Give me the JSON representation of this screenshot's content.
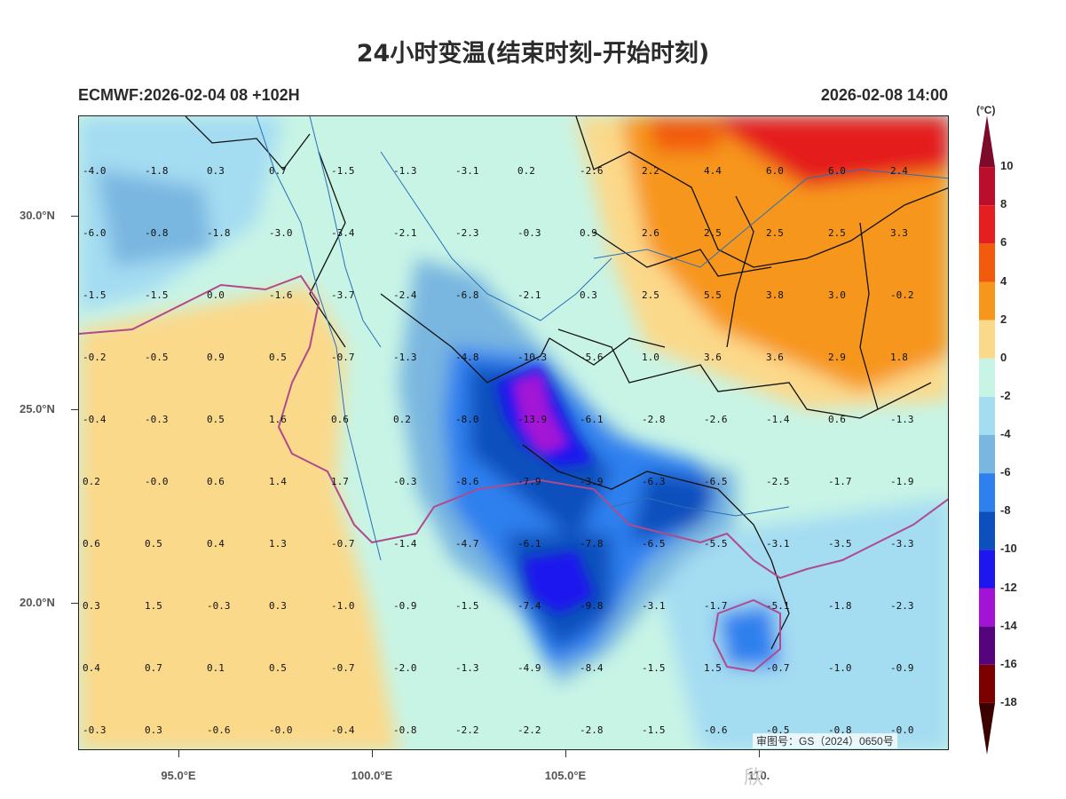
{
  "title": "24小时变温(结束时刻-开始时刻)",
  "model_run": "ECMWF:2026-02-04 08 +102H",
  "valid_time": "2026-02-08 14:00",
  "colorbar": {
    "unit": "(°C)",
    "labels": [
      "10",
      "8",
      "6",
      "4",
      "2",
      "0",
      "-2",
      "-4",
      "-6",
      "-8",
      "-10",
      "-12",
      "-14",
      "-16",
      "-18"
    ],
    "colors": [
      "#7d0a2a",
      "#bb0e2d",
      "#e51f1f",
      "#f25a0e",
      "#f7961c",
      "#fbd98a",
      "#c8f4e6",
      "#a4dcf2",
      "#79b6e0",
      "#2f80ef",
      "#0c4fbd",
      "#1d16ef",
      "#a313d6",
      "#56037e",
      "#7d0000",
      "#3a0000"
    ]
  },
  "lat_labels": [
    "30.0°N",
    "25.0°N",
    "20.0°N"
  ],
  "lon_labels": [
    "95.0°E",
    "100.0°E",
    "105.0°E",
    "110."
  ],
  "approval_number": "审图号：GS（2024）0650号",
  "watermark": "欣",
  "grid_values": [
    [
      "-4.0",
      "-1.8",
      "0.3",
      "0.7",
      "-1.5",
      "-1.3",
      "-3.1",
      "0.2",
      "-2.6",
      "2.2",
      "4.4",
      "6.0",
      "6.0",
      "2.4"
    ],
    [
      "-6.0",
      "-0.8",
      "-1.8",
      "-3.0",
      "-3.4",
      "-2.1",
      "-2.3",
      "-0.3",
      "0.9",
      "2.6",
      "2.5",
      "2.5",
      "2.5",
      "3.3"
    ],
    [
      "-1.5",
      "-1.5",
      "0.0",
      "-1.6",
      "-3.7",
      "-2.4",
      "-6.8",
      "-2.1",
      "0.3",
      "2.5",
      "5.5",
      "3.8",
      "3.0",
      "-0.2"
    ],
    [
      "-0.2",
      "-0.5",
      "0.9",
      "0.5",
      "-0.7",
      "-1.3",
      "-4.8",
      "-10.3",
      "-5.6",
      "1.0",
      "3.6",
      "3.6",
      "2.9",
      "1.8"
    ],
    [
      "-0.4",
      "-0.3",
      "0.5",
      "1.6",
      "0.6",
      "0.2",
      "-8.0",
      "-13.9",
      "-6.1",
      "-2.8",
      "-2.6",
      "-1.4",
      "0.6",
      "-1.3"
    ],
    [
      "0.2",
      "-0.0",
      "0.6",
      "1.4",
      "1.7",
      "-0.3",
      "-8.6",
      "-7.9",
      "-3.9",
      "-6.3",
      "-6.5",
      "-2.5",
      "-1.7",
      "-1.9"
    ],
    [
      "0.6",
      "0.5",
      "0.4",
      "1.3",
      "-0.7",
      "-1.4",
      "-4.7",
      "-6.1",
      "-7.8",
      "-6.5",
      "-5.5",
      "-3.1",
      "-3.5",
      "-3.3"
    ],
    [
      "0.3",
      "1.5",
      "-0.3",
      "0.3",
      "-1.0",
      "-0.9",
      "-1.5",
      "-7.4",
      "-9.8",
      "-3.1",
      "-1.7",
      "-5.1",
      "-1.8",
      "-2.3"
    ],
    [
      "0.4",
      "0.7",
      "0.1",
      "0.5",
      "-0.7",
      "-2.0",
      "-1.3",
      "-4.9",
      "-8.4",
      "-1.5",
      "1.5",
      "-0.7",
      "-1.0",
      "-0.9"
    ],
    [
      "-0.3",
      "0.3",
      "-0.6",
      "-0.0",
      "-0.4",
      "-0.8",
      "-2.2",
      "-2.2",
      "-2.8",
      "-1.5",
      "-0.6",
      "-0.5",
      "-0.8",
      "-0.0"
    ]
  ]
}
